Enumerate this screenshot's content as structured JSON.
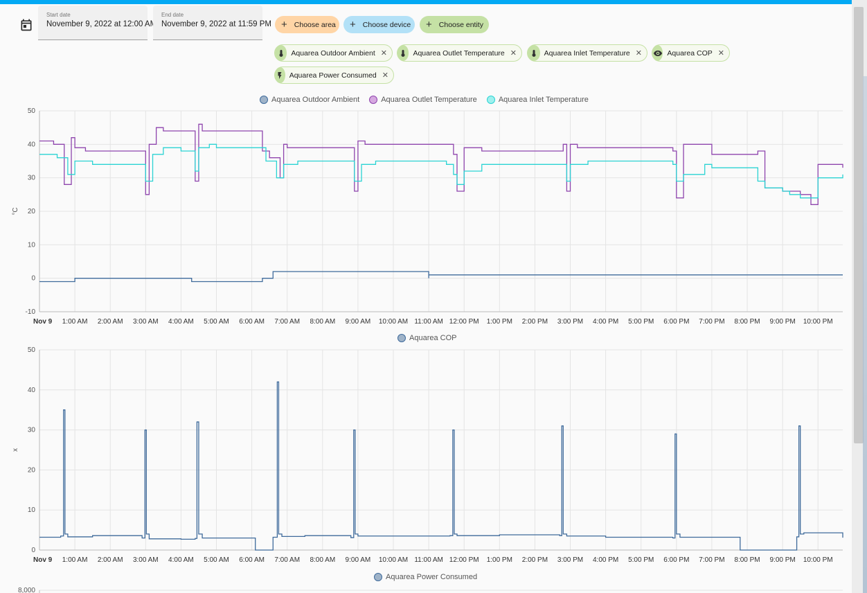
{
  "start_date": {
    "label": "Start date",
    "value": "November 9, 2022 at 12:00 AM"
  },
  "end_date": {
    "label": "End date",
    "value": "November 9, 2022 at 11:59 PM"
  },
  "pickers": {
    "area": "Choose area",
    "device": "Choose device",
    "entity": "Choose entity"
  },
  "chips": [
    {
      "label": "Aquarea Outdoor Ambient",
      "icon": "thermometer-icon"
    },
    {
      "label": "Aquarea Outlet Temperature",
      "icon": "thermometer-icon"
    },
    {
      "label": "Aquarea Inlet Temperature",
      "icon": "thermometer-icon"
    },
    {
      "label": "Aquarea COP",
      "icon": "eye-icon"
    },
    {
      "label": "Aquarea Power Consumed",
      "icon": "lightning-icon"
    }
  ],
  "colors": {
    "accent": "#03a9f4",
    "outdoor": "#3e6a9b",
    "outlet": "#8e44ad",
    "inlet": "#2ad3d3",
    "cop": "#3e6a9b"
  },
  "chart_data": [
    {
      "type": "line",
      "ylabel": "°C",
      "ylim": [
        -10,
        50
      ],
      "yticks": [
        "50",
        "40",
        "30",
        "20",
        "10",
        "0",
        "-10"
      ],
      "x_tick_labels": [
        "Nov 9",
        "1:00 AM",
        "2:00 AM",
        "3:00 AM",
        "4:00 AM",
        "5:00 AM",
        "6:00 AM",
        "7:00 AM",
        "8:00 AM",
        "9:00 AM",
        "10:00 AM",
        "11:00 AM",
        "12:00 PM",
        "1:00 PM",
        "2:00 PM",
        "3:00 PM",
        "4:00 PM",
        "5:00 PM",
        "6:00 PM",
        "7:00 PM",
        "8:00 PM",
        "9:00 PM",
        "10:00 PM"
      ],
      "x_hours_range": [
        0,
        22.7
      ],
      "legend": [
        "Aquarea Outdoor Ambient",
        "Aquarea Outlet Temperature",
        "Aquarea Inlet Temperature"
      ],
      "series": [
        {
          "name": "Aquarea Outdoor Ambient",
          "x": [
            0,
            0.5,
            0.5,
            1.0,
            1.0,
            4.3,
            4.3,
            6.3,
            6.3,
            6.6,
            6.6,
            11.0,
            11.0,
            22.7
          ],
          "y": [
            -1,
            -1,
            -1,
            -1,
            0,
            0,
            -1,
            -1,
            0,
            0,
            2,
            0,
            1,
            1
          ]
        },
        {
          "name": "Aquarea Outlet Temperature",
          "x": [
            0,
            0.4,
            0.7,
            0.9,
            1.0,
            1.3,
            2.0,
            2.9,
            3.0,
            3.1,
            3.3,
            3.5,
            4.0,
            4.4,
            4.5,
            4.6,
            5.0,
            6.2,
            6.3,
            6.5,
            6.8,
            6.9,
            7.0,
            7.5,
            8.0,
            8.8,
            8.9,
            9.0,
            9.2,
            10.0,
            11.5,
            11.7,
            11.8,
            12.0,
            12.5,
            14.0,
            14.8,
            14.9,
            15.0,
            15.2,
            16.0,
            17.5,
            17.9,
            18.0,
            18.2,
            19.0,
            20.0,
            20.3,
            20.5,
            21.0,
            21.5,
            21.8,
            22.0,
            22.7
          ],
          "y": [
            41,
            40,
            28,
            42,
            39,
            38,
            38,
            38,
            25,
            40,
            45,
            44,
            44,
            29,
            46,
            44,
            44,
            44,
            38,
            36,
            30,
            40,
            39,
            39,
            39,
            39,
            26,
            41,
            40,
            40,
            40,
            37,
            26,
            39,
            38,
            38,
            40,
            26,
            40,
            39,
            39,
            39,
            38,
            24,
            40,
            37,
            37,
            38,
            27,
            26,
            25,
            22,
            34,
            33
          ]
        },
        {
          "name": "Aquarea Inlet Temperature",
          "x": [
            0,
            0.5,
            0.8,
            1.0,
            1.5,
            2.0,
            2.9,
            3.0,
            3.2,
            3.5,
            4.0,
            4.4,
            4.5,
            4.8,
            5.0,
            6.2,
            6.4,
            6.7,
            6.9,
            7.3,
            8.0,
            8.8,
            8.9,
            9.1,
            9.5,
            10.0,
            11.5,
            11.7,
            11.8,
            12.0,
            12.5,
            14.0,
            14.8,
            14.9,
            15.0,
            15.5,
            16.0,
            17.5,
            17.9,
            18.0,
            18.2,
            18.8,
            19.0,
            20.0,
            20.3,
            20.5,
            21.0,
            21.2,
            21.5,
            22.0,
            22.7
          ],
          "y": [
            37,
            36,
            31,
            35,
            34,
            34,
            34,
            29,
            37,
            39,
            38,
            32,
            39,
            40,
            39,
            39,
            35,
            30,
            34,
            35,
            35,
            35,
            29,
            34,
            35,
            35,
            34,
            31,
            28,
            32,
            34,
            34,
            34,
            29,
            34,
            35,
            35,
            35,
            34,
            29,
            31,
            34,
            33,
            33,
            29,
            27,
            26,
            25,
            24,
            30,
            31
          ]
        }
      ]
    },
    {
      "type": "line",
      "ylabel": "x",
      "ylim": [
        0,
        50
      ],
      "yticks": [
        "50",
        "40",
        "30",
        "20",
        "10",
        "0"
      ],
      "x_tick_labels": [
        "Nov 9",
        "1:00 AM",
        "2:00 AM",
        "3:00 AM",
        "4:00 AM",
        "5:00 AM",
        "6:00 AM",
        "7:00 AM",
        "8:00 AM",
        "9:00 AM",
        "10:00 AM",
        "11:00 AM",
        "12:00 PM",
        "1:00 PM",
        "2:00 PM",
        "3:00 PM",
        "4:00 PM",
        "5:00 PM",
        "6:00 PM",
        "7:00 PM",
        "8:00 PM",
        "9:00 PM",
        "10:00 PM"
      ],
      "x_hours_range": [
        0,
        22.7
      ],
      "legend": [
        "Aquarea COP"
      ],
      "series": [
        {
          "name": "Aquarea COP",
          "x": [
            0,
            0.6,
            0.68,
            0.72,
            0.8,
            1.5,
            2.9,
            2.98,
            3.02,
            3.1,
            4.0,
            4.4,
            4.45,
            4.5,
            4.6,
            5.0,
            6.1,
            6.1,
            6.6,
            6.6,
            6.72,
            6.76,
            6.85,
            7.5,
            8.8,
            8.88,
            8.92,
            9.0,
            10.0,
            11.6,
            11.68,
            11.72,
            11.8,
            13.0,
            14.7,
            14.76,
            14.8,
            14.9,
            16.0,
            17.9,
            17.96,
            18.0,
            18.1,
            19.0,
            19.8,
            19.8,
            20.1,
            20.1,
            20.5,
            20.5,
            21.0,
            21.4,
            21.46,
            21.5,
            21.6,
            22.7
          ],
          "y": [
            3.2,
            3.5,
            35,
            4,
            3.3,
            3.6,
            3.0,
            30,
            4,
            2.8,
            2.7,
            2.9,
            32,
            4,
            3.0,
            3.0,
            3.0,
            0,
            0,
            3.2,
            42,
            4,
            3.4,
            3.6,
            3.1,
            30,
            4,
            3.5,
            3.5,
            3.6,
            30,
            4,
            3.6,
            3.8,
            3.6,
            31,
            4,
            3.5,
            3.2,
            3.0,
            29,
            4,
            3.2,
            3.2,
            3.0,
            0,
            0,
            0,
            0,
            0,
            0,
            3.3,
            31,
            4,
            4.3,
            3.1
          ]
        }
      ]
    },
    {
      "type": "line",
      "legend": [
        "Aquarea Power Consumed"
      ],
      "yticks": [
        "8,000"
      ]
    }
  ]
}
